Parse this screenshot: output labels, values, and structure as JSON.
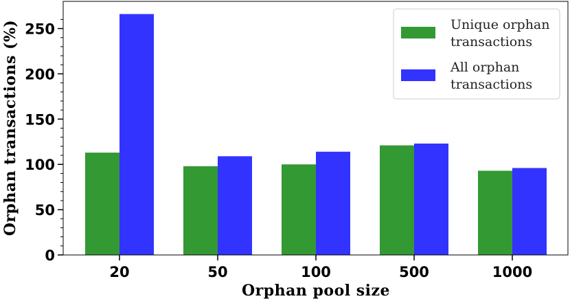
{
  "chart_data": {
    "type": "bar",
    "xlabel": "Orphan pool size",
    "ylabel": "Orphan transactions (%)",
    "categories": [
      "20",
      "50",
      "100",
      "500",
      "1000"
    ],
    "series": [
      {
        "name": "Unique orphan transactions",
        "legend_lines": [
          "Unique orphan",
          "transactions"
        ],
        "color": "#339933",
        "values": [
          113,
          98,
          100,
          121,
          93
        ]
      },
      {
        "name": "All orphan transactions",
        "legend_lines": [
          "All orphan",
          "transactions"
        ],
        "color": "#3333ff",
        "values": [
          266,
          109,
          114,
          123,
          96
        ]
      }
    ],
    "yticks": [
      "0",
      "50",
      "100",
      "150",
      "200",
      "250"
    ],
    "ylim": [
      0,
      280
    ],
    "grid": false,
    "legend_position": "top-right"
  }
}
